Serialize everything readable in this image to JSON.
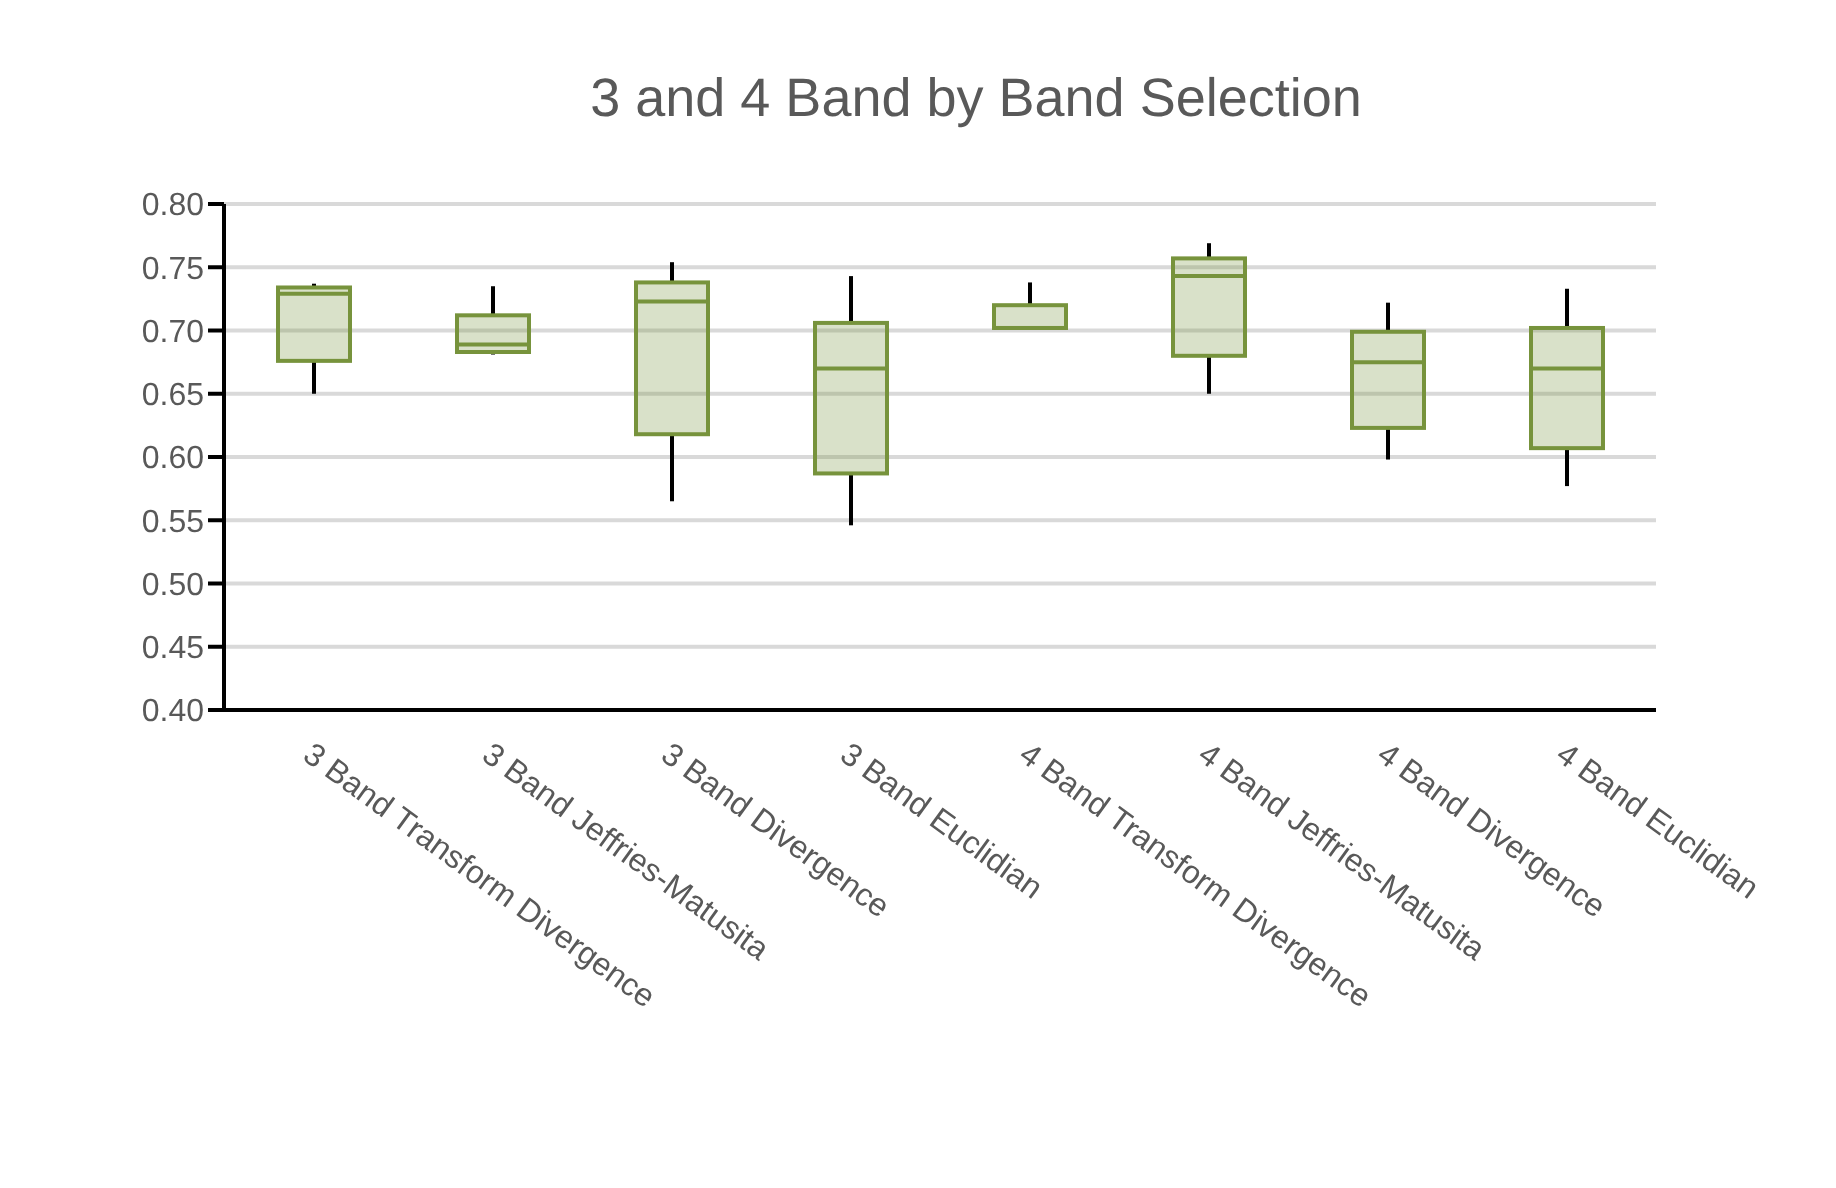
{
  "chart_data": {
    "type": "box",
    "title": "3 and 4 Band by Band Selection",
    "categories": [
      "3 Band Transform Divergence",
      "3 Band Jeffries-Matusita",
      "3 Band Divergence",
      "3 Band Euclidian",
      "4 Band Transform Divergence",
      "4 Band Jeffries-Matusita",
      "4 Band Divergence",
      "4 Band Euclidian"
    ],
    "color": "#77933c",
    "boxes": [
      {
        "low": 0.65,
        "q1": 0.676,
        "median": 0.729,
        "q3": 0.734,
        "high": 0.737
      },
      {
        "low": 0.681,
        "q1": 0.683,
        "median": 0.689,
        "q3": 0.712,
        "high": 0.735
      },
      {
        "low": 0.565,
        "q1": 0.618,
        "median": 0.723,
        "q3": 0.738,
        "high": 0.754
      },
      {
        "low": 0.546,
        "q1": 0.587,
        "median": 0.67,
        "q3": 0.706,
        "high": 0.743
      },
      {
        "low": 0.702,
        "q1": 0.702,
        "median": 0.702,
        "q3": 0.72,
        "high": 0.738
      },
      {
        "low": 0.65,
        "q1": 0.68,
        "median": 0.743,
        "q3": 0.757,
        "high": 0.769
      },
      {
        "low": 0.598,
        "q1": 0.623,
        "median": 0.675,
        "q3": 0.699,
        "high": 0.722
      },
      {
        "low": 0.577,
        "q1": 0.607,
        "median": 0.67,
        "q3": 0.702,
        "high": 0.733
      }
    ],
    "ylim": [
      0.4,
      0.8
    ],
    "yticks": [
      {
        "value": 0.4,
        "label": "0.40"
      },
      {
        "value": 0.45,
        "label": "0.45"
      },
      {
        "value": 0.5,
        "label": "0.50"
      },
      {
        "value": 0.55,
        "label": "0.55"
      },
      {
        "value": 0.6,
        "label": "0.60"
      },
      {
        "value": 0.65,
        "label": "0.65"
      },
      {
        "value": 0.7,
        "label": "0.70"
      },
      {
        "value": 0.75,
        "label": "0.75"
      },
      {
        "value": 0.8,
        "label": "0.80"
      }
    ],
    "grid": "y"
  }
}
